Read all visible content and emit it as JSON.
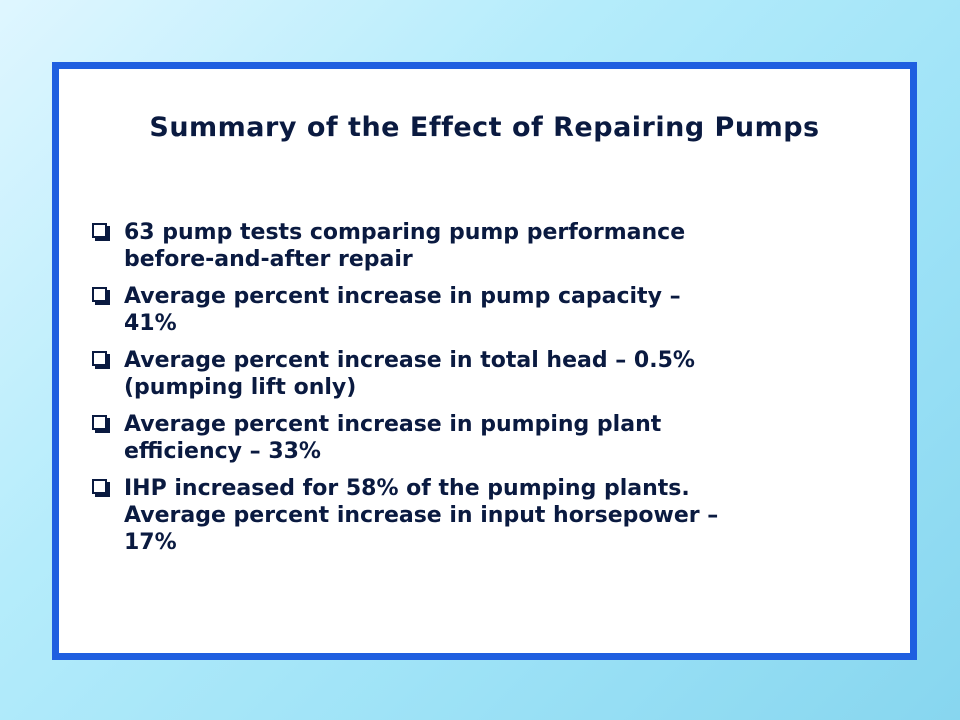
{
  "slide": {
    "title": "Summary of the Effect of Repairing Pumps",
    "bullets": [
      {
        "lines": [
          "63 pump tests comparing pump performance",
          "before-and-after repair"
        ]
      },
      {
        "lines": [
          "Average percent increase in pump capacity –",
          "41%"
        ]
      },
      {
        "lines": [
          "Average percent increase in total head – 0.5%",
          "(pumping lift only)"
        ]
      },
      {
        "lines": [
          "Average percent increase in pumping plant",
          "efficiency – 33%"
        ]
      },
      {
        "lines": [
          "IHP increased for 58% of the pumping plants.",
          "Average percent increase in input horsepower –",
          "17%"
        ]
      }
    ],
    "bullet_icon": "square-bullet-icon",
    "colors": {
      "frame_border": "#1f5fe0",
      "text": "#0a1a40",
      "panel": "#ffffff"
    }
  }
}
